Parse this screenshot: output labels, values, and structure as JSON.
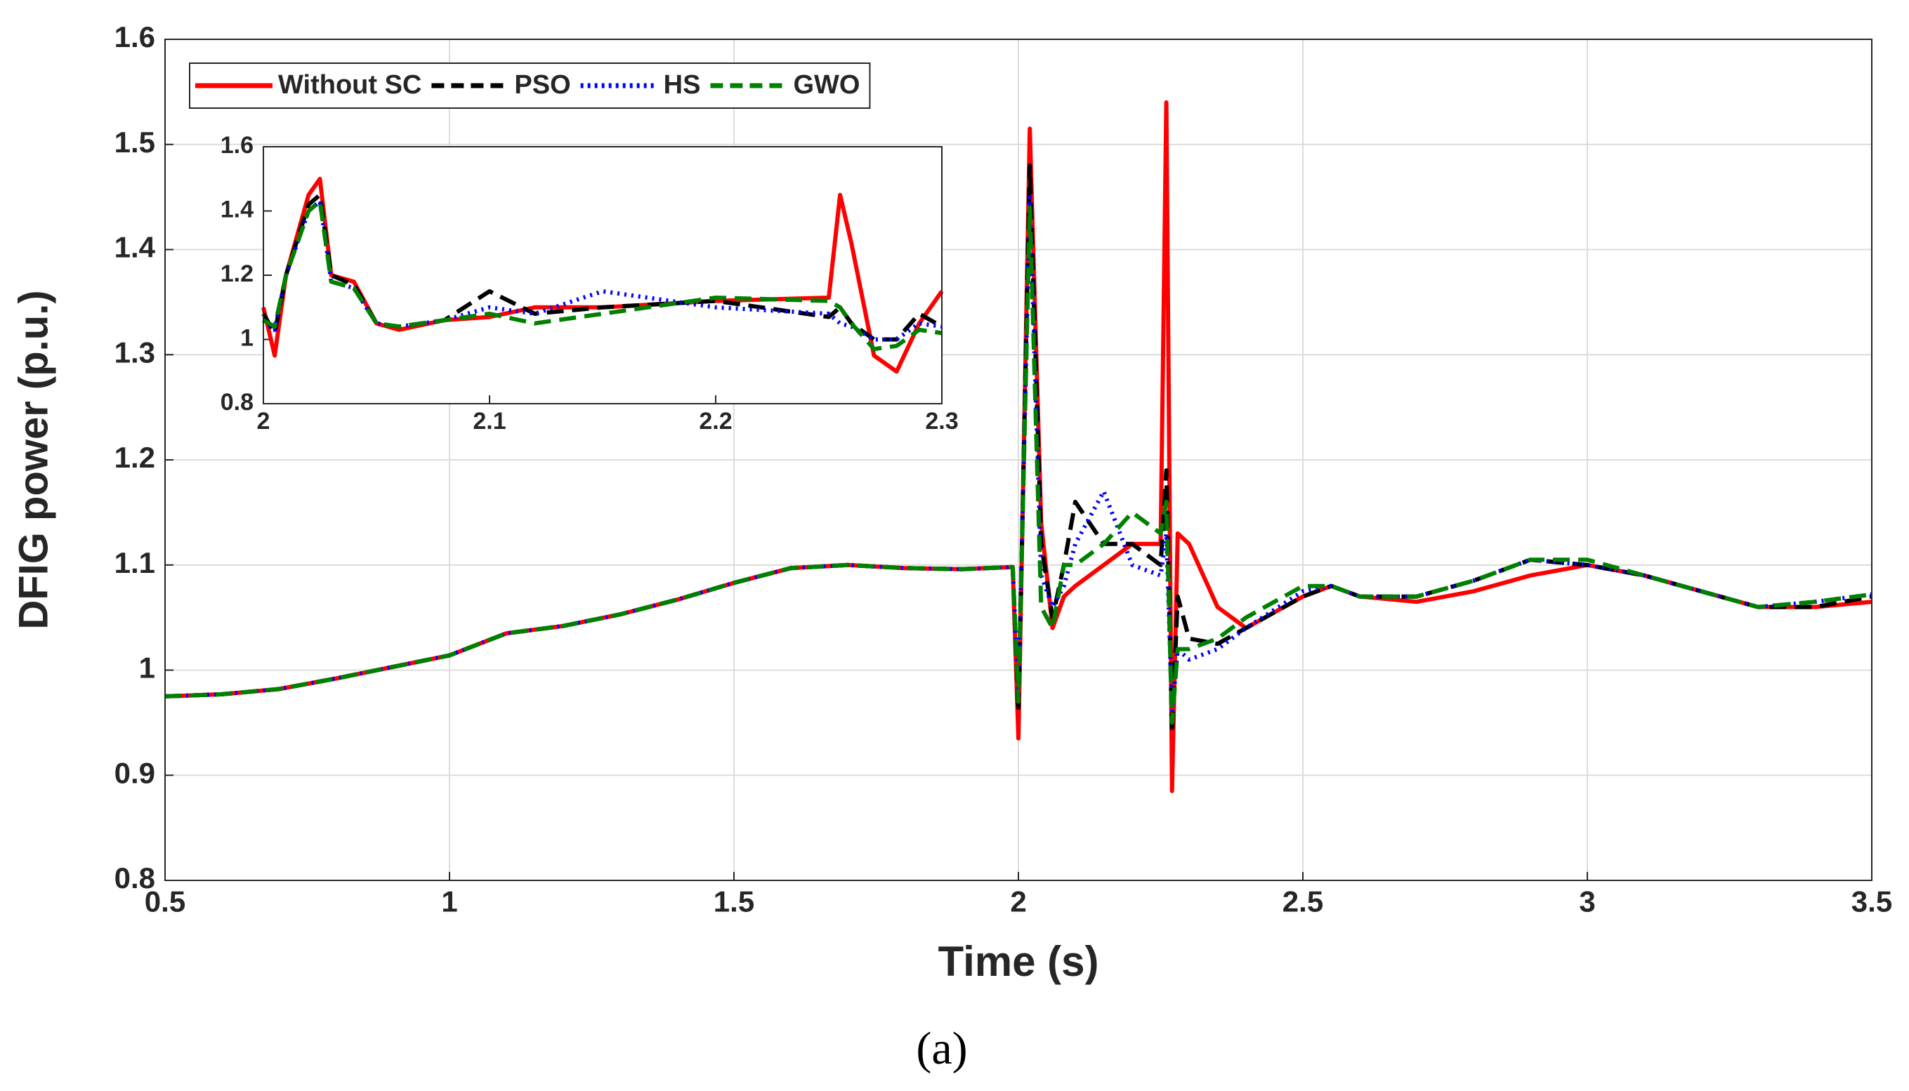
{
  "chart_data": [
    {
      "type": "line",
      "xlabel": "Time (s)",
      "ylabel": "DFIG  power  (p.u.)",
      "xlim": [
        0.5,
        3.5
      ],
      "ylim": [
        0.8,
        1.6
      ],
      "xticks": [
        0.5,
        1,
        1.5,
        2,
        2.5,
        3,
        3.5
      ],
      "yticks": [
        0.8,
        0.9,
        1,
        1.1,
        1.2,
        1.3,
        1.4,
        1.5,
        1.6
      ],
      "grid": true,
      "legend": "upper left",
      "x": [
        0.5,
        0.6,
        0.7,
        0.8,
        0.9,
        1.0,
        1.1,
        1.2,
        1.3,
        1.4,
        1.5,
        1.6,
        1.7,
        1.8,
        1.9,
        1.99,
        2.0,
        2.02,
        2.04,
        2.06,
        2.08,
        2.1,
        2.15,
        2.2,
        2.25,
        2.26,
        2.27,
        2.28,
        2.3,
        2.35,
        2.4,
        2.5,
        2.55,
        2.6,
        2.7,
        2.8,
        2.9,
        3.0,
        3.1,
        3.2,
        3.3,
        3.4,
        3.5
      ],
      "series": [
        {
          "name": "Without SC",
          "color": "#ff0000",
          "style": "solid",
          "values": [
            0.975,
            0.977,
            0.982,
            0.992,
            1.003,
            1.014,
            1.035,
            1.042,
            1.053,
            1.067,
            1.083,
            1.097,
            1.1,
            1.097,
            1.096,
            1.098,
            0.935,
            1.515,
            1.14,
            1.04,
            1.07,
            1.08,
            1.1,
            1.12,
            1.12,
            1.54,
            0.885,
            1.13,
            1.12,
            1.06,
            1.04,
            1.07,
            1.08,
            1.07,
            1.065,
            1.075,
            1.09,
            1.1,
            1.09,
            1.075,
            1.06,
            1.06,
            1.065
          ]
        },
        {
          "name": "PSO",
          "color": "#000000",
          "style": "dashed",
          "values": [
            0.975,
            0.977,
            0.982,
            0.992,
            1.003,
            1.014,
            1.035,
            1.042,
            1.053,
            1.067,
            1.083,
            1.097,
            1.1,
            1.097,
            1.096,
            1.098,
            0.96,
            1.48,
            1.12,
            1.05,
            1.1,
            1.16,
            1.12,
            1.12,
            1.1,
            1.19,
            0.94,
            1.07,
            1.03,
            1.025,
            1.04,
            1.07,
            1.08,
            1.07,
            1.07,
            1.085,
            1.105,
            1.1,
            1.09,
            1.075,
            1.06,
            1.06,
            1.07
          ]
        },
        {
          "name": "HS",
          "color": "#0000ff",
          "style": "dotted",
          "values": [
            0.975,
            0.977,
            0.982,
            0.992,
            1.003,
            1.014,
            1.035,
            1.042,
            1.053,
            1.067,
            1.083,
            1.097,
            1.1,
            1.097,
            1.096,
            1.098,
            0.97,
            1.45,
            1.09,
            1.06,
            1.08,
            1.12,
            1.17,
            1.1,
            1.09,
            1.13,
            0.96,
            1.02,
            1.01,
            1.02,
            1.04,
            1.075,
            1.08,
            1.07,
            1.07,
            1.085,
            1.105,
            1.1,
            1.09,
            1.075,
            1.06,
            1.065,
            1.072
          ]
        },
        {
          "name": "GWO",
          "color": "#008000",
          "style": "dashed",
          "values": [
            0.975,
            0.977,
            0.982,
            0.992,
            1.003,
            1.014,
            1.035,
            1.042,
            1.053,
            1.067,
            1.083,
            1.097,
            1.1,
            1.097,
            1.096,
            1.098,
            0.97,
            1.44,
            1.06,
            1.04,
            1.1,
            1.1,
            1.12,
            1.15,
            1.13,
            1.16,
            0.95,
            1.02,
            1.02,
            1.03,
            1.05,
            1.08,
            1.08,
            1.07,
            1.07,
            1.085,
            1.105,
            1.105,
            1.09,
            1.075,
            1.06,
            1.065,
            1.072
          ]
        }
      ]
    },
    {
      "type": "line",
      "xlim": [
        2,
        2.3
      ],
      "ylim": [
        0.8,
        1.6
      ],
      "xticks": [
        2,
        2.1,
        2.2,
        2.3
      ],
      "yticks": [
        0.8,
        1,
        1.2,
        1.4,
        1.6
      ],
      "grid": false,
      "x": [
        2.0,
        2.005,
        2.01,
        2.02,
        2.025,
        2.03,
        2.04,
        2.05,
        2.06,
        2.08,
        2.1,
        2.12,
        2.15,
        2.2,
        2.25,
        2.255,
        2.26,
        2.27,
        2.28,
        2.29,
        2.3
      ],
      "series": [
        {
          "color": "#ff0000",
          "style": "solid",
          "values": [
            1.1,
            0.95,
            1.2,
            1.45,
            1.5,
            1.2,
            1.18,
            1.05,
            1.03,
            1.06,
            1.07,
            1.1,
            1.1,
            1.12,
            1.13,
            1.45,
            1.3,
            0.95,
            0.9,
            1.05,
            1.15
          ]
        },
        {
          "color": "#000000",
          "style": "dashed",
          "values": [
            1.08,
            1.02,
            1.2,
            1.42,
            1.45,
            1.2,
            1.17,
            1.05,
            1.04,
            1.06,
            1.15,
            1.08,
            1.1,
            1.12,
            1.07,
            1.1,
            1.05,
            1.0,
            1.0,
            1.08,
            1.04
          ]
        },
        {
          "color": "#0000ff",
          "style": "dotted",
          "values": [
            1.06,
            1.03,
            1.2,
            1.4,
            1.43,
            1.18,
            1.16,
            1.05,
            1.04,
            1.06,
            1.1,
            1.08,
            1.15,
            1.1,
            1.08,
            1.05,
            1.04,
            1.0,
            1.0,
            1.05,
            1.04
          ]
        },
        {
          "color": "#008000",
          "style": "dashed",
          "values": [
            1.06,
            1.04,
            1.2,
            1.4,
            1.43,
            1.18,
            1.16,
            1.05,
            1.04,
            1.06,
            1.08,
            1.05,
            1.08,
            1.13,
            1.12,
            1.1,
            1.05,
            0.97,
            0.98,
            1.03,
            1.02
          ]
        }
      ]
    }
  ],
  "caption": "(a)"
}
